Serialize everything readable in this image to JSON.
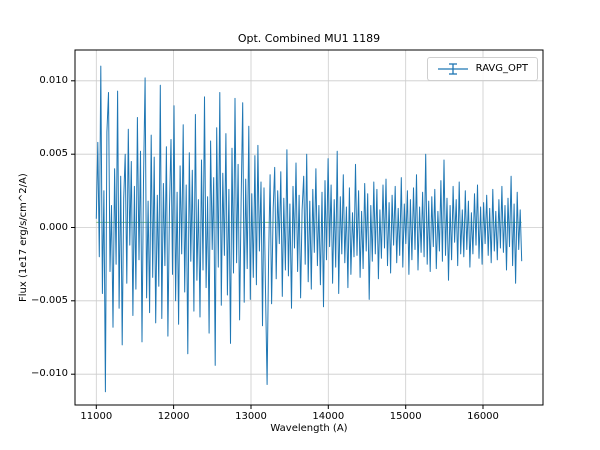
{
  "chart_data": {
    "type": "line",
    "title": "Opt. Combined MU1 1189",
    "xlabel": "Wavelength (A)",
    "ylabel": "Flux (1e17 erg/s/cm^2/A)",
    "xlim": [
      10725,
      16775
    ],
    "ylim": [
      -0.0121,
      0.0121
    ],
    "x_ticks": [
      11000,
      12000,
      13000,
      14000,
      15000,
      16000
    ],
    "x_tick_labels": [
      "11000",
      "12000",
      "13000",
      "14000",
      "15000",
      "16000"
    ],
    "y_ticks": [
      -0.01,
      -0.005,
      0.0,
      0.005,
      0.01
    ],
    "y_tick_labels": [
      "−0.010",
      "−0.005",
      "0.000",
      "0.005",
      "0.010"
    ],
    "grid": true,
    "grid_color": "#cccccc",
    "axes_color": "#000000",
    "legend": {
      "position": "upper right",
      "entries": [
        {
          "label": "RAVG_OPT",
          "color": "#1f77b4",
          "marker": "errorbar"
        }
      ]
    },
    "series": [
      {
        "name": "baseline",
        "type": "hline",
        "color": "#7fbf7f",
        "x_start": 11000,
        "x_end": 16500,
        "y_const": 0.00035
      },
      {
        "name": "RAVG_OPT",
        "type": "noisy-spectrum",
        "color": "#1f77b4",
        "x_start": 11000,
        "x_end": 16500,
        "value_scale": 0.001,
        "values": [
          0.6,
          5.8,
          -2.0,
          11.0,
          -4.5,
          2.5,
          -11.2,
          6.5,
          9.2,
          -3.0,
          1.5,
          -6.8,
          4.0,
          -2.5,
          9.3,
          -5.5,
          3.5,
          -8.0,
          2.0,
          5.0,
          -3.8,
          6.7,
          -1.2,
          4.5,
          -6.0,
          2.8,
          -4.2,
          7.5,
          -2.2,
          5.2,
          -7.8,
          3.2,
          10.2,
          -4.8,
          1.8,
          -5.8,
          6.3,
          -3.4,
          4.8,
          -6.5,
          2.2,
          -4.0,
          9.7,
          -6.2,
          3.0,
          -2.6,
          5.5,
          -7.4,
          1.4,
          6.0,
          -3.2,
          8.3,
          -5.0,
          2.4,
          -6.6,
          4.2,
          -1.8,
          7.0,
          -4.4,
          2.9,
          -8.6,
          5.1,
          -2.3,
          3.9,
          -5.7,
          7.7,
          -3.6,
          1.9,
          -6.1,
          4.6,
          -2.9,
          8.9,
          -4.1,
          2.1,
          -7.2,
          5.9,
          -1.5,
          3.4,
          -9.4,
          6.8,
          -2.7,
          9.2,
          -5.3,
          3.7,
          -1.9,
          6.4,
          -4.6,
          2.6,
          -7.9,
          5.4,
          -3.1,
          8.8,
          -2.4,
          4.3,
          -6.3,
          1.7,
          8.5,
          -5.1,
          3.3,
          -2.8,
          6.9,
          -4.9,
          2.3,
          -3.4,
          4.9,
          -3.9,
          5.6,
          -1.6,
          3.1,
          -6.7,
          2.7,
          -4.3,
          -10.7,
          -2.1,
          3.6,
          -5.2,
          1.3,
          4.1,
          -3.5,
          2.5,
          -1.1,
          3.8,
          -4.7,
          2.0,
          -2.9,
          5.3,
          -3.3,
          1.6,
          -5.5,
          2.8,
          -1.4,
          4.4,
          -3.0,
          2.2,
          -4.8,
          1.2,
          3.5,
          -2.5,
          5.0,
          -3.7,
          1.8,
          -4.2,
          2.6,
          -1.7,
          4.0,
          -2.6,
          1.5,
          -3.9,
          2.4,
          -5.4,
          3.2,
          -2.2,
          4.7,
          -1.3,
          2.9,
          -3.8,
          1.9,
          -2.7,
          5.2,
          -4.5,
          2.1,
          -1.8,
          3.6,
          -2.4,
          1.4,
          -4.1,
          2.7,
          -3.2,
          1.0,
          -2.0,
          4.3,
          -1.9,
          2.5,
          -3.4,
          1.1,
          -2.8,
          3.0,
          -1.6,
          2.3,
          -4.9,
          1.5,
          -2.3,
          3.1,
          -1.8,
          2.6,
          -3.5,
          1.2,
          -2.1,
          2.9,
          -1.4,
          3.3,
          -2.6,
          1.7,
          -3.1,
          2.2,
          -1.2,
          2.8,
          -2.4,
          1.3,
          -1.9,
          3.4,
          -2.7,
          1.6,
          -1.1,
          2.5,
          -3.2,
          1.9,
          -2.2,
          2.7,
          -1.5,
          3.6,
          -2.9,
          1.4,
          -1.7,
          2.4,
          -2.0,
          5.0,
          -2.5,
          1.8,
          -3.0,
          2.1,
          -1.3,
          2.6,
          -2.8,
          1.1,
          -1.6,
          3.2,
          -2.3,
          4.6,
          -1.9,
          2.0,
          -3.6,
          1.5,
          -2.2,
          2.8,
          -1.0,
          1.9,
          -2.6,
          3.1,
          -1.8,
          1.2,
          -2.0,
          2.5,
          -1.5,
          1.8,
          -2.7,
          1.0,
          -1.8,
          2.3,
          -1.2,
          2.9,
          -2.1,
          1.4,
          -2.5,
          1.7,
          -1.1,
          2.2,
          -1.9,
          1.3,
          -2.4,
          2.6,
          -1.6,
          1.1,
          -2.2,
          1.9,
          -1.4,
          2.8,
          -1.7,
          1.5,
          -2.9,
          2.0,
          -1.3,
          3.5,
          -2.6,
          1.6,
          -3.8,
          2.4,
          -1.5,
          1.2,
          -2.3
        ]
      }
    ]
  }
}
